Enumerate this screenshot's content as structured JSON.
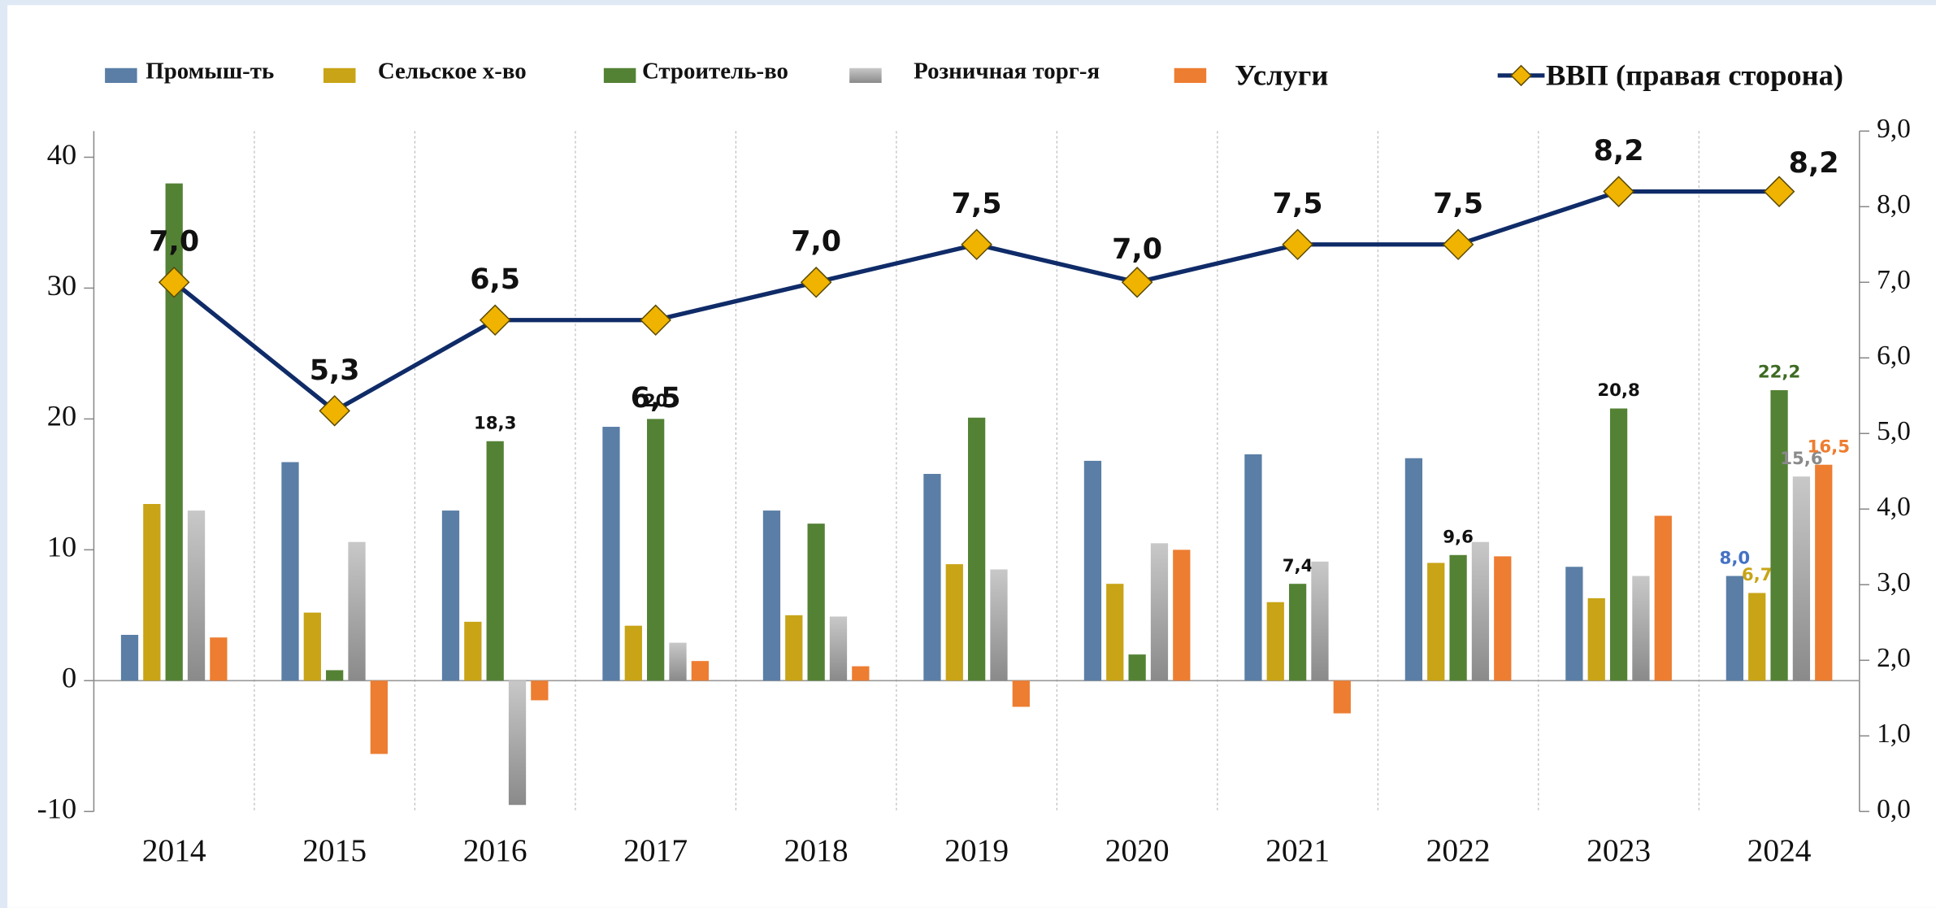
{
  "chart_data": {
    "type": "bar",
    "categories": [
      "2014",
      "2015",
      "2016",
      "2017",
      "2018",
      "2019",
      "2020",
      "2021",
      "2022",
      "2023",
      "2024"
    ],
    "ylim": [
      -10,
      42
    ],
    "yticks": [
      -10,
      0,
      10,
      20,
      30,
      40
    ],
    "y2lim": [
      0,
      9
    ],
    "y2ticks": [
      {
        "value": 0,
        "label": "0,0"
      },
      {
        "value": 1,
        "label": "1,0"
      },
      {
        "value": 2,
        "label": "2,0"
      },
      {
        "value": 3,
        "label": "3,0"
      },
      {
        "value": 4,
        "label": "4,0"
      },
      {
        "value": 5,
        "label": "5,0"
      },
      {
        "value": 6,
        "label": "6,0"
      },
      {
        "value": 7,
        "label": "7,0"
      },
      {
        "value": 8,
        "label": "8,0"
      },
      {
        "value": 9,
        "label": "9,0"
      }
    ],
    "grid": true,
    "legend": "top",
    "series": [
      {
        "name": "Промыш-ть",
        "color": "#5a7ea6",
        "label_color": "#4472c4",
        "values": [
          3.5,
          16.7,
          13,
          19.4,
          13,
          15.8,
          16.8,
          17.3,
          17,
          8.7,
          8.0
        ],
        "value_labels": [
          null,
          null,
          null,
          null,
          null,
          null,
          null,
          null,
          null,
          null,
          "8,0"
        ]
      },
      {
        "name": "Сельское х-во",
        "color": "#c8a416",
        "label_color": "#c8a416",
        "values": [
          13.5,
          5.2,
          4.5,
          4.2,
          5,
          8.9,
          7.4,
          6,
          9,
          6.3,
          6.7
        ],
        "value_labels": [
          null,
          null,
          null,
          null,
          null,
          null,
          null,
          null,
          null,
          null,
          "6,7"
        ]
      },
      {
        "name": "Строитель-во",
        "color": "#548235",
        "label_color": "#3d6a22",
        "values": [
          38,
          0.8,
          18.3,
          20,
          12,
          20.1,
          2,
          7.4,
          9.6,
          20.8,
          22.2
        ],
        "value_labels": [
          null,
          null,
          "18,3",
          "20",
          null,
          null,
          null,
          "7,4",
          "9,6",
          "20,8",
          "22,2"
        ]
      },
      {
        "name": "Розничная торг-я",
        "color": "#a5a5a5",
        "label_color": "#8a8a8a",
        "values": [
          13,
          10.6,
          -9.5,
          2.9,
          4.9,
          8.5,
          10.5,
          9.1,
          10.6,
          8,
          15.6
        ],
        "value_labels": [
          null,
          null,
          null,
          null,
          null,
          null,
          null,
          null,
          null,
          null,
          "15,6"
        ]
      },
      {
        "name": "Услуги",
        "color": "#ed7d31",
        "label_color": "#ed7d31",
        "values": [
          3.3,
          -5.6,
          -1.5,
          1.5,
          1.1,
          -2,
          10,
          -2.5,
          9.5,
          12.6,
          16.5
        ],
        "value_labels": [
          null,
          null,
          null,
          null,
          null,
          null,
          null,
          null,
          null,
          null,
          "16,5"
        ]
      },
      {
        "name": "ВВП (правая сторона)",
        "type": "line",
        "axis": "y2",
        "color": "#0f2b68",
        "marker_color": "#f0b400",
        "values": [
          7.0,
          5.3,
          6.5,
          6.5,
          7.0,
          7.5,
          7.0,
          7.5,
          7.5,
          8.2,
          8.2
        ],
        "value_labels": [
          "7,0",
          "5,3",
          "6,5",
          "6,5",
          "7,0",
          "7,5",
          "7,0",
          "7,5",
          "7,5",
          "8,2",
          "8,2"
        ]
      }
    ]
  }
}
